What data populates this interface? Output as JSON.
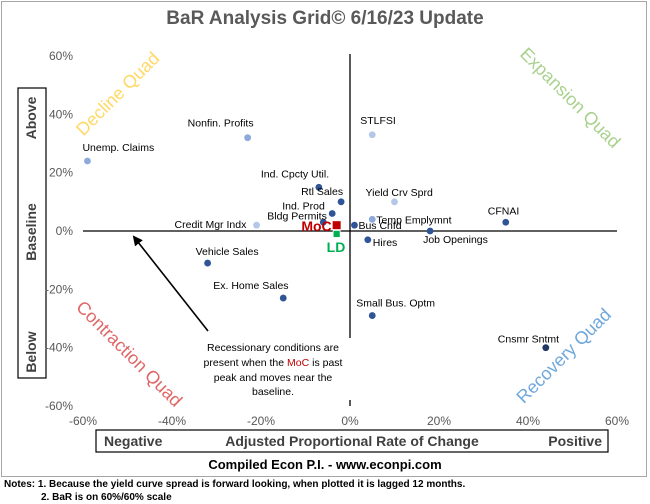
{
  "title": "BaR Analysis Grid© 6/16/23 Update",
  "chart_data": {
    "type": "scatter",
    "xlim": [
      -60,
      60
    ],
    "ylim": [
      -60,
      60
    ],
    "x_ticks": [
      "-60%",
      "-40%",
      "-20%",
      "0%",
      "20%",
      "40%",
      "60%"
    ],
    "y_ticks": [
      "60%",
      "40%",
      "20%",
      "0%",
      "-20%",
      "-40%",
      "-60%"
    ],
    "tick_values": [
      -60,
      -40,
      -20,
      0,
      20,
      40,
      60
    ],
    "xlabel": "Adjusted Proportional Rate of Change",
    "xlabel_left": "Negative",
    "xlabel_right": "Positive",
    "ylabel": "Baseline",
    "ylabel_top": "Above",
    "ylabel_bottom": "Below",
    "quadrants": {
      "top_left": "Decline Quad",
      "top_right": "Expansion Quad",
      "bottom_left": "Contraction Quad",
      "bottom_right": "Recovery Quad"
    },
    "points": [
      {
        "label": "Unemp. Claims",
        "x": -59,
        "y": 24,
        "color": "#8ea9db"
      },
      {
        "label": "Nonfin. Profits",
        "x": -23,
        "y": 32,
        "color": "#8ea9db"
      },
      {
        "label": "STLFSI",
        "x": 5,
        "y": 33,
        "color": "#b4c7e7"
      },
      {
        "label": "Ind. Cpcty Util.",
        "x": -7,
        "y": 15,
        "color": "#2f5597"
      },
      {
        "label": "Rtl Sales",
        "x": -2,
        "y": 10,
        "color": "#2f5597"
      },
      {
        "label": "Ind. Prod",
        "x": -4,
        "y": 6,
        "color": "#2f5597"
      },
      {
        "label": "Yield Crv Sprd",
        "x": 10,
        "y": 10,
        "color": "#b4c7e7"
      },
      {
        "label": "Temp Emplymnt",
        "x": 5,
        "y": 4,
        "color": "#8ea9db"
      },
      {
        "label": "CFNAI",
        "x": 35,
        "y": 3,
        "color": "#2f5597"
      },
      {
        "label": "Credit Mgr Indx",
        "x": -21,
        "y": 2,
        "color": "#b4c7e7"
      },
      {
        "label": "Bldg Permits",
        "x": -6,
        "y": 3,
        "color": "#2f5597"
      },
      {
        "label": "Bus Cnfd",
        "x": 1,
        "y": 2,
        "color": "#2f5597"
      },
      {
        "label": "Job Openings",
        "x": 18,
        "y": 0,
        "color": "#2f5597"
      },
      {
        "label": "Hires",
        "x": 4,
        "y": -3,
        "color": "#2f5597"
      },
      {
        "label": "Vehicle Sales",
        "x": -32,
        "y": -11,
        "color": "#2f5597"
      },
      {
        "label": "Ex. Home Sales",
        "x": -15,
        "y": -23,
        "color": "#2f5597"
      },
      {
        "label": "Small Bus. Optm",
        "x": 5,
        "y": -29,
        "color": "#2f5597"
      },
      {
        "label": "Cnsmr Sntmt",
        "x": 44,
        "y": -40,
        "color": "#1f3864"
      }
    ],
    "moc": {
      "label": "MoC",
      "x": -3,
      "y": 2,
      "color": "#c00000"
    },
    "ld": {
      "label": "LD",
      "x": -3,
      "y": -1,
      "color": "#00b050"
    },
    "annotation": "Recessionary conditions are present when the MoC is past peak and moves near the baseline.",
    "annotation_lines": [
      "Recessionary conditions are",
      "present when the ",
      "MoC",
      " is past",
      "peak and moves near the",
      "baseline."
    ]
  },
  "footer": "Compiled Econ P.I. - www.econpi.com",
  "notes": [
    "Notes: 1. Because the yield curve spread is forward looking, when plotted it is lagged 12 months.",
    "2. BaR is on 60%/60% scale"
  ],
  "colors": {
    "decline": "#ffd966",
    "expansion": "#a9d18e",
    "contraction": "#e06666",
    "recovery": "#6fa8dc",
    "grid_title": "#595959"
  }
}
